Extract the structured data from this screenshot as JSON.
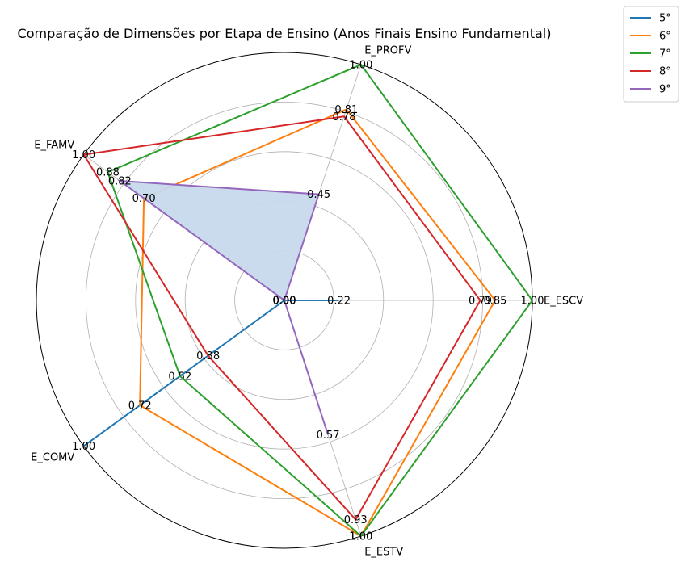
{
  "chart_data": {
    "type": "radar",
    "title": "Comparação de Dimensões por Etapa de Ensino (Anos Finais Ensino Fundamental)",
    "axes": [
      "E_ESCV",
      "E_PROFV",
      "E_FAMV",
      "E_COMV",
      "E_ESTV"
    ],
    "rlim": [
      0,
      1
    ],
    "grid": true,
    "legend_position": "top-right",
    "series": [
      {
        "name": "5°",
        "color": "#1f77b4",
        "values": [
          0.22,
          0.0,
          0.0,
          1.0,
          0.0
        ],
        "labels": [
          "0.22",
          "0.00",
          "0.00",
          "1.00",
          "0.00"
        ],
        "fill": false
      },
      {
        "name": "6°",
        "color": "#ff7f0e",
        "values": [
          0.85,
          0.81,
          0.7,
          0.72,
          1.0
        ],
        "labels": [
          "0.85",
          "0.81",
          "0.70",
          "0.72",
          "1.00"
        ],
        "fill": false
      },
      {
        "name": "7°",
        "color": "#2ca02c",
        "values": [
          1.0,
          1.0,
          0.88,
          0.52,
          1.0
        ],
        "labels": [
          "1.00",
          "1.00",
          "0.88",
          "0.52",
          "1.00"
        ],
        "fill": false
      },
      {
        "name": "8°",
        "color": "#d62728",
        "values": [
          0.79,
          0.78,
          1.0,
          0.38,
          0.93
        ],
        "labels": [
          "0.79",
          "0.78",
          "1.00",
          "0.38",
          "0.93"
        ],
        "fill": false
      },
      {
        "name": "9°",
        "color": "#9467bd",
        "values": [
          0.0,
          0.45,
          0.82,
          0.0,
          0.57
        ],
        "labels": [
          "0.00",
          "0.45",
          "0.82",
          "0.00",
          "0.57"
        ],
        "fill": true,
        "fill_color": "#c6d9eb"
      }
    ]
  }
}
